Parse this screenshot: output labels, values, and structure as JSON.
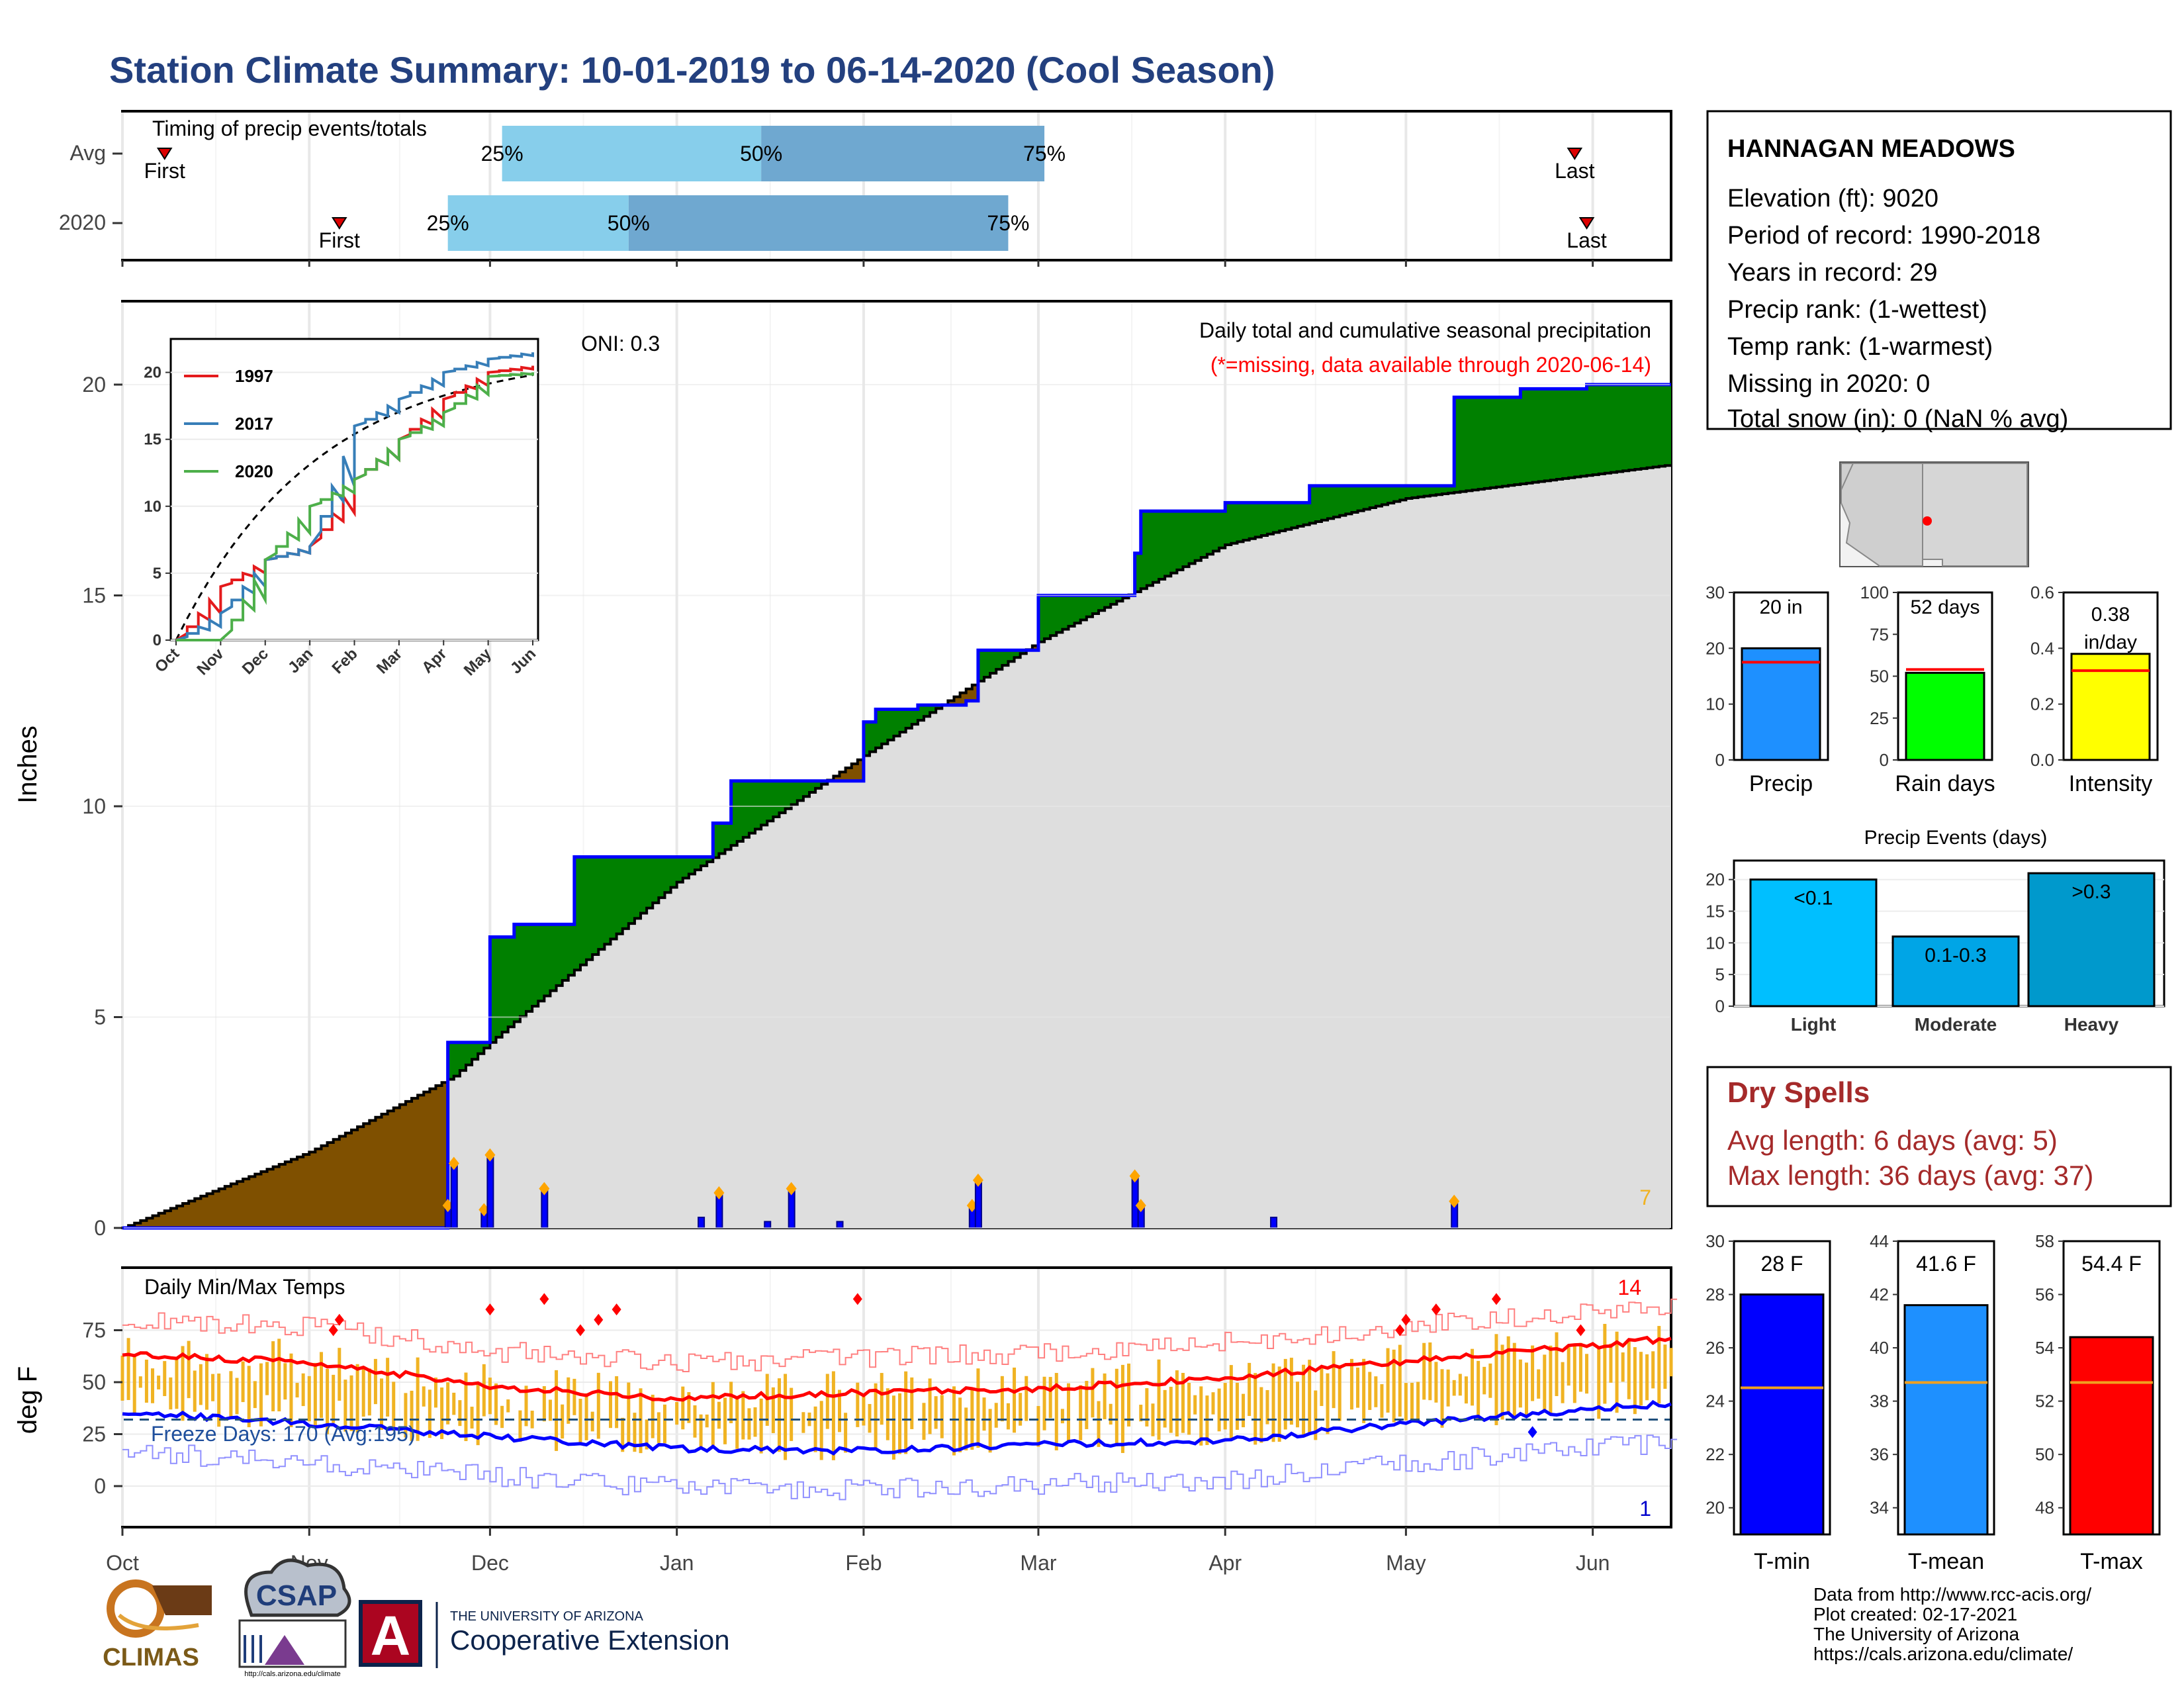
{
  "title": "Station Climate Summary: 10-01-2019 to 06-14-2020 (Cool Season)",
  "months": [
    "Oct",
    "Nov",
    "Dec",
    "Jan",
    "Feb",
    "Mar",
    "Apr",
    "May",
    "Jun"
  ],
  "colors": {
    "title": "#23407f",
    "dry_spells": "#a52a2a",
    "above_avg": "#008000",
    "below_avg": "#7f5000",
    "climo_fill": "#dedede",
    "daily_bar": "#0000ff",
    "light_blue": "#87ceeb",
    "mid_blue": "#6fa8d0",
    "temp_bar": "#f0b323",
    "red": "#ff0000",
    "blue": "#0000ff"
  },
  "timing": {
    "label": "Timing of precip events/totals",
    "rows": [
      {
        "name": "Avg",
        "first_label": "First",
        "last_label": "Last",
        "p25": "25%",
        "p50": "50%",
        "p75": "75%",
        "first_date": "2019-10-08",
        "last_date": "2020-05-29",
        "d25": "2019-12-03",
        "d50": "2020-01-15",
        "d75": "2020-03-02"
      },
      {
        "name": "2020",
        "first_label": "First",
        "last_label": "Last",
        "p25": "25%",
        "p50": "50%",
        "p75": "75%",
        "first_date": "2019-11-06",
        "last_date": "2020-05-31",
        "d25": "2019-11-24",
        "d50": "2019-12-24",
        "d75": "2020-02-25"
      }
    ]
  },
  "main": {
    "ylabel": "Inches",
    "yticks": [
      "0",
      "5",
      "10",
      "15",
      "20"
    ],
    "caption_line1": "Daily total and cumulative seasonal precipitation",
    "caption_line2": "(*=missing, data available through 2020-06-14)",
    "oni": "ONI: 0.3",
    "corner_count": "7"
  },
  "inset": {
    "yticks": [
      "0",
      "5",
      "10",
      "15",
      "20"
    ],
    "months": [
      "Oct",
      "Nov",
      "Dec",
      "Jan",
      "Feb",
      "Mar",
      "Apr",
      "May",
      "Jun"
    ],
    "legend": [
      {
        "label": "1997",
        "color": "#e41a1c"
      },
      {
        "label": "2017",
        "color": "#377eb8"
      },
      {
        "label": "2020",
        "color": "#4daf4a"
      }
    ]
  },
  "temps": {
    "label": "Daily Min/Max Temps",
    "ylabel": "deg F",
    "yticks": [
      "0",
      "25",
      "50",
      "75"
    ],
    "freeze": "Freeze Days: 170 (Avg:195)",
    "max_count": "14",
    "min_count": "1"
  },
  "station": {
    "name": "HANNAGAN MEADOWS",
    "lines": [
      "Elevation (ft): 9020",
      "Period of record: 1990-2018",
      "Years in record: 29",
      "Precip rank:  (1-wettest)",
      "Temp rank:  (1-warmest)",
      "Missing in 2020: 0",
      "Total snow (in): 0 (NaN % avg)"
    ]
  },
  "mini_bars": [
    {
      "label": "Precip",
      "value_text": "20 in",
      "ticks": [
        "0",
        "10",
        "20",
        "30"
      ],
      "ymax": 30,
      "value": 20,
      "avg": 17.5,
      "color": "#1e90ff"
    },
    {
      "label": "Rain days",
      "value_text": "52 days",
      "ticks": [
        "0",
        "25",
        "50",
        "75",
        "100"
      ],
      "ymax": 100,
      "value": 52,
      "avg": 54,
      "color": "#00ff00"
    },
    {
      "label": "Intensity",
      "value_text": "0.38 in/day",
      "ticks": [
        "0.0",
        "0.2",
        "0.4",
        "0.6"
      ],
      "ymax": 0.6,
      "value": 0.38,
      "avg": 0.32,
      "color": "#ffff00"
    }
  ],
  "events": {
    "title": "Precip Events (days)",
    "ticks": [
      "0",
      "5",
      "10",
      "15",
      "20"
    ],
    "bars": [
      {
        "label": "Light",
        "inner": "<0.1",
        "value": 20,
        "color": "#00bfff"
      },
      {
        "label": "Moderate",
        "inner": "0.1-0.3",
        "value": 11,
        "color": "#00a5e6"
      },
      {
        "label": "Heavy",
        "inner": ">0.3",
        "value": 21,
        "color": "#0099cc"
      }
    ]
  },
  "dry_spells": {
    "title": "Dry Spells",
    "avg": "Avg length: 6 days (avg: 5)",
    "max": "Max length: 36 days (avg: 37)"
  },
  "temp_bars": [
    {
      "label": "T-min",
      "value_text": "28 F",
      "ticks": [
        "20",
        "22",
        "24",
        "26",
        "28",
        "30"
      ],
      "ymin": 19,
      "ymax": 30,
      "value": 28,
      "avg": 24.5,
      "color": "#0000ff"
    },
    {
      "label": "T-mean",
      "value_text": "41.6 F",
      "ticks": [
        "34",
        "36",
        "38",
        "40",
        "42",
        "44"
      ],
      "ymin": 33,
      "ymax": 44,
      "value": 41.6,
      "avg": 38.7,
      "color": "#1e90ff"
    },
    {
      "label": "T-max",
      "value_text": "54.4 F",
      "ticks": [
        "48",
        "50",
        "52",
        "54",
        "56",
        "58"
      ],
      "ymin": 47,
      "ymax": 58,
      "value": 54.4,
      "avg": 52.7,
      "color": "#ff0000"
    }
  ],
  "footer": {
    "lines": [
      "Data from http://www.rcc-acis.org/",
      "Plot created: 02-17-2021",
      "The University of Arizona",
      "https://cals.arizona.edu/climate/"
    ],
    "logos": {
      "climas": "CLIMAS",
      "csap": "CSAP",
      "csap_url": "http://cals.arizona.edu/climate",
      "ua_small": "THE UNIVERSITY OF ARIZONA",
      "ua_big": "Cooperative Extension",
      "ua_letter": "A"
    }
  },
  "chart_data": [
    {
      "type": "area",
      "title": "Daily total and cumulative seasonal precipitation",
      "ylabel": "Inches",
      "ylim": [
        0,
        22
      ],
      "x_range": [
        "2019-10-01",
        "2020-06-14"
      ],
      "series": [
        {
          "name": "2020",
          "x": [
            "2019-10-01",
            "2019-11-06",
            "2019-11-24",
            "2019-11-25",
            "2019-12-01",
            "2019-12-05",
            "2019-12-15",
            "2020-01-04",
            "2020-01-07",
            "2020-01-10",
            "2020-01-20",
            "2020-02-01",
            "2020-02-03",
            "2020-02-10",
            "2020-02-18",
            "2020-02-20",
            "2020-03-01",
            "2020-03-17",
            "2020-03-18",
            "2020-04-01",
            "2020-04-15",
            "2020-05-09",
            "2020-05-20",
            "2020-05-31",
            "2020-06-14"
          ],
          "y": [
            0.0,
            0.0,
            4.4,
            4.4,
            6.9,
            7.2,
            8.8,
            8.8,
            9.6,
            10.6,
            10.6,
            12.0,
            12.3,
            12.4,
            12.5,
            13.7,
            15.0,
            16.0,
            17.0,
            17.2,
            17.6,
            19.7,
            19.9,
            20.0,
            20.0
          ]
        },
        {
          "name": "Average",
          "x": [
            "2019-10-01",
            "2019-11-01",
            "2019-11-25",
            "2019-12-01",
            "2020-01-01",
            "2020-02-01",
            "2020-03-01",
            "2020-04-01",
            "2020-05-01",
            "2020-06-14"
          ],
          "y": [
            0.0,
            1.8,
            3.6,
            4.4,
            8.2,
            11.2,
            13.9,
            16.2,
            17.3,
            18.1
          ]
        }
      ]
    },
    {
      "type": "bar",
      "title": "Daily precipitation",
      "x": [
        "2019-11-24",
        "2019-11-25",
        "2019-11-30",
        "2019-12-01",
        "2019-12-10",
        "2020-01-05",
        "2020-01-08",
        "2020-01-16",
        "2020-01-20",
        "2020-01-28",
        "2020-02-19",
        "2020-02-20",
        "2020-03-17",
        "2020-03-18",
        "2020-04-09",
        "2020-05-09"
      ],
      "y": [
        0.5,
        1.5,
        0.4,
        1.7,
        0.9,
        0.25,
        0.8,
        0.15,
        0.9,
        0.15,
        0.5,
        1.1,
        1.2,
        0.5,
        0.25,
        0.6
      ]
    },
    {
      "type": "line",
      "title": "Daily Min/Max Temps",
      "ylabel": "deg F",
      "ylim": [
        -15,
        92
      ],
      "series": [
        {
          "name": "Avg max",
          "x": [
            "2019-10-01",
            "2019-11-01",
            "2019-12-01",
            "2020-01-01",
            "2020-02-01",
            "2020-03-01",
            "2020-04-01",
            "2020-05-01",
            "2020-06-14"
          ],
          "y": [
            63,
            60,
            48,
            42,
            45,
            47,
            52,
            60,
            71
          ]
        },
        {
          "name": "Avg min",
          "x": [
            "2019-10-01",
            "2019-11-01",
            "2019-12-01",
            "2020-01-01",
            "2020-02-01",
            "2020-03-01",
            "2020-04-01",
            "2020-05-01",
            "2020-06-14"
          ],
          "y": [
            36,
            30,
            24,
            18,
            17,
            20,
            22,
            30,
            40
          ]
        }
      ],
      "freeze_line": 32
    },
    {
      "type": "line",
      "title": "Inset cumulative",
      "x_months": [
        "Oct",
        "Nov",
        "Dec",
        "Jan",
        "Feb",
        "Mar",
        "Apr",
        "May",
        "Jun"
      ],
      "series": [
        {
          "name": "1997",
          "y": [
            0,
            4,
            6,
            7,
            12,
            15,
            18,
            20,
            20.5
          ]
        },
        {
          "name": "2017",
          "y": [
            0,
            2,
            6,
            7,
            16,
            18,
            20,
            21,
            21.5
          ]
        },
        {
          "name": "2020",
          "y": [
            0,
            0,
            6,
            10,
            12,
            15,
            17,
            19.7,
            20
          ]
        }
      ]
    }
  ]
}
